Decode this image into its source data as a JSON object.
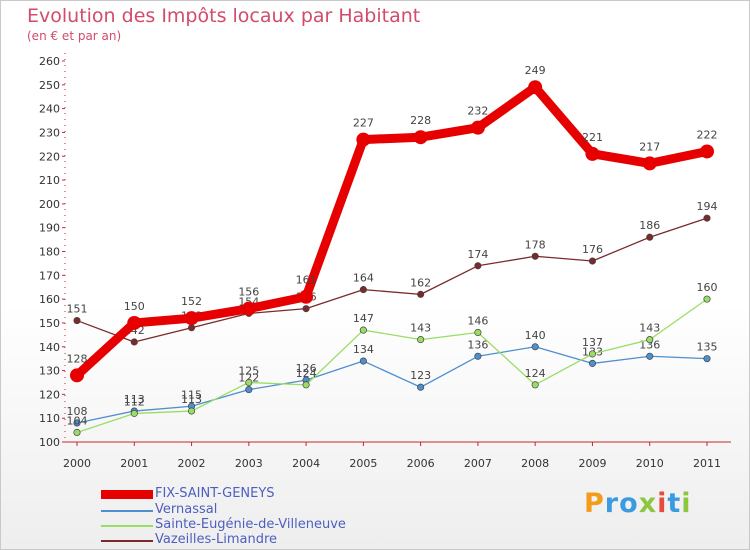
{
  "title": "Evolution des Impôts locaux par Habitant",
  "subtitle": "(en € et par an)",
  "logo": {
    "text": "Proxiti",
    "colors": [
      "#f39b1a",
      "#3a9be0",
      "#3a9be0",
      "#8dc63f",
      "#e74c3c",
      "#3a9be0",
      "#8dc63f"
    ]
  },
  "chart_data": {
    "type": "line",
    "x": [
      "2000",
      "2001",
      "2002",
      "2003",
      "2004",
      "2005",
      "2006",
      "2007",
      "2008",
      "2009",
      "2010",
      "2011"
    ],
    "ylim": [
      100,
      260
    ],
    "yticks": [
      100,
      110,
      120,
      130,
      140,
      150,
      160,
      170,
      180,
      190,
      200,
      210,
      220,
      230,
      240,
      250,
      260
    ],
    "grid": false,
    "legend_position": "bottom-left",
    "series": [
      {
        "name": "FIX-SAINT-GENEYS",
        "color": "#e60000",
        "emphasis": true,
        "values": [
          128,
          150,
          152,
          156,
          161,
          227,
          228,
          232,
          249,
          221,
          217,
          222
        ],
        "labels": [
          "128",
          "150",
          "152",
          "156",
          "161",
          "227",
          "228",
          "232",
          "249",
          "221",
          "217",
          "222"
        ]
      },
      {
        "name": "Vernassal",
        "color": "#4d8fcf",
        "emphasis": false,
        "values": [
          108,
          113,
          115,
          122,
          126,
          134,
          123,
          136,
          140,
          133,
          136,
          135
        ],
        "labels": [
          "108",
          "113",
          "115",
          "122",
          "126",
          "134",
          "123",
          "136",
          "140",
          "133",
          "136",
          "135"
        ]
      },
      {
        "name": "Sainte-Eugénie-de-Villeneuve",
        "color": "#99dd66",
        "emphasis": false,
        "values": [
          104,
          112,
          113,
          125,
          124,
          147,
          143,
          146,
          124,
          137,
          143,
          160
        ],
        "labels": [
          "104",
          "112",
          "113",
          "125",
          "124",
          "147",
          "143",
          "146",
          "124",
          "137",
          "143",
          "160"
        ]
      },
      {
        "name": "Vazeilles-Limandre",
        "color": "#7a2a2a",
        "emphasis": false,
        "values": [
          151,
          142,
          148,
          154,
          156,
          164,
          162,
          174,
          178,
          176,
          186,
          194
        ],
        "labels": [
          "151",
          "142",
          "148",
          "154",
          "156",
          "164",
          "162",
          "174",
          "178",
          "176",
          "186",
          "194"
        ]
      }
    ]
  }
}
